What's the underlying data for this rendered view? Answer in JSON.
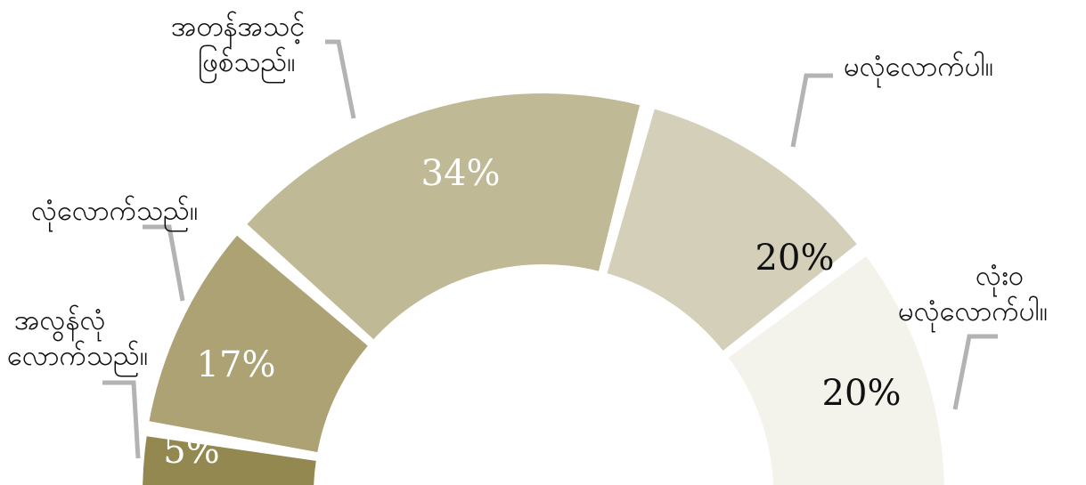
{
  "chart_data": {
    "type": "pie",
    "subtype": "half-donut",
    "title": "",
    "slices": [
      {
        "label": "အလွန်လုံ\nလောက်သည်။",
        "value": 5,
        "display": "5%",
        "color": "#938850",
        "text_color": "#ffffff"
      },
      {
        "label": "လုံလောက်သည်။",
        "value": 17,
        "display": "17%",
        "color": "#aca274",
        "text_color": "#ffffff"
      },
      {
        "label": "အတန်အသင့်\nဖြစ်သည်။",
        "value": 34,
        "display": "34%",
        "color": "#bfb995",
        "text_color": "#ffffff"
      },
      {
        "label": "မလုံလောက်ပါ။",
        "value": 20,
        "display": "20%",
        "color": "#d4cfb8",
        "text_color": "#111111"
      },
      {
        "label": "လုံးဝ\nမလုံလောက်ပါ။",
        "value": 20,
        "display": "20%",
        "color": "#f3f3ec",
        "text_color": "#111111"
      }
    ]
  }
}
